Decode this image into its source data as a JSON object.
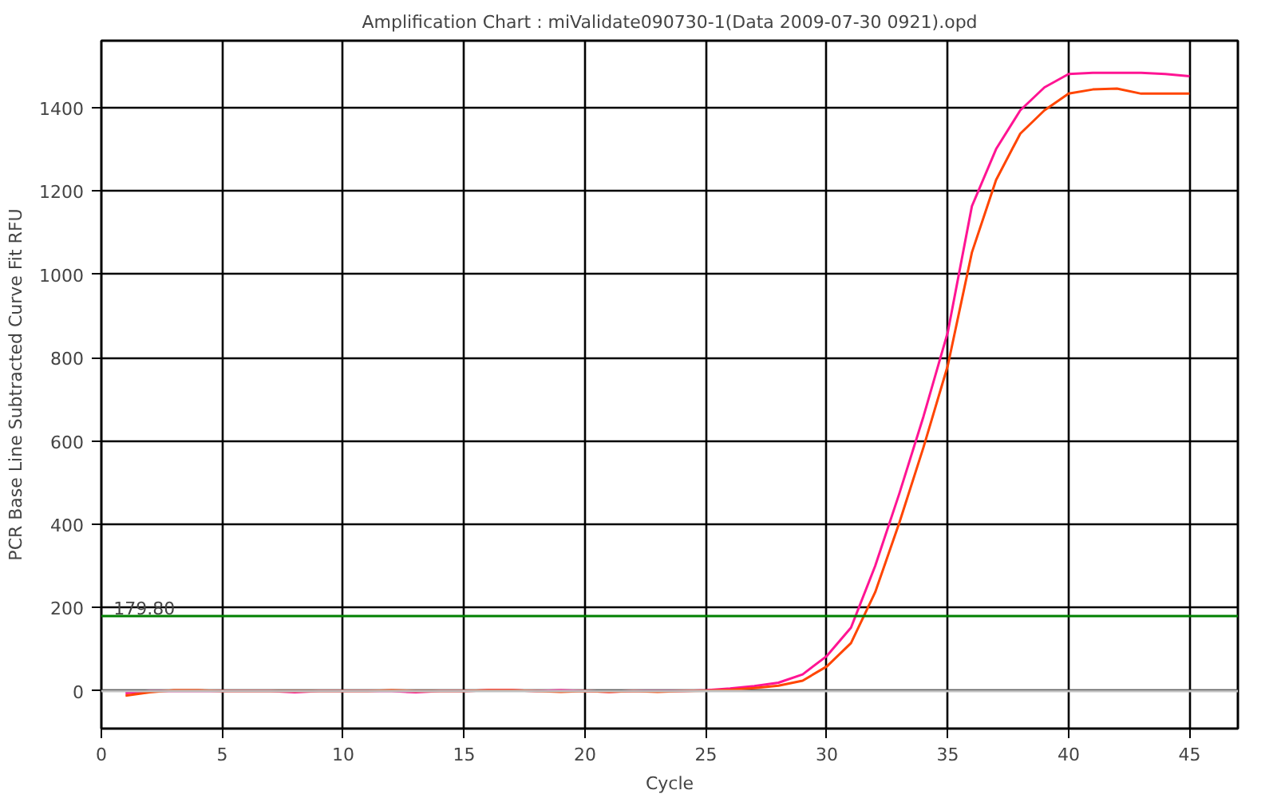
{
  "chart_data": {
    "type": "line",
    "title": "Amplification Chart : miValidate090730-1(Data 2009-07-30 0921).opd",
    "xlabel": "Cycle",
    "ylabel": "PCR Base Line Subtracted Curve Fit RFU",
    "x": [
      1,
      2,
      3,
      4,
      5,
      6,
      7,
      8,
      9,
      10,
      11,
      12,
      13,
      14,
      15,
      16,
      17,
      18,
      19,
      20,
      21,
      22,
      23,
      24,
      25,
      26,
      27,
      28,
      29,
      30,
      31,
      32,
      33,
      34,
      35,
      36,
      37,
      38,
      39,
      40,
      41,
      42,
      43,
      44,
      45
    ],
    "series": [
      {
        "color": "#ff1493",
        "values": [
          -5,
          0,
          0,
          0,
          0,
          0,
          0,
          -3,
          0,
          0,
          0,
          0,
          -3,
          0,
          0,
          2,
          2,
          0,
          2,
          0,
          -2,
          0,
          0,
          0,
          2,
          6,
          12,
          20,
          40,
          84,
          152,
          300,
          474,
          659,
          860,
          1163,
          1300,
          1393,
          1448,
          1480,
          1483,
          1483,
          1483,
          1480,
          1475
        ]
      },
      {
        "color": "#ff4500",
        "values": [
          -11,
          -3,
          2,
          2,
          0,
          0,
          0,
          0,
          0,
          0,
          0,
          2,
          0,
          0,
          0,
          2,
          2,
          0,
          -2,
          0,
          -2,
          0,
          -2,
          0,
          1,
          3,
          7,
          13,
          25,
          59,
          115,
          237,
          404,
          585,
          780,
          1052,
          1226,
          1337,
          1393,
          1433,
          1443,
          1445,
          1433,
          1433,
          1433
        ]
      }
    ],
    "xlim": [
      0,
      47
    ],
    "ylim": [
      -90,
      1560
    ],
    "xticks": [
      0,
      5,
      10,
      15,
      20,
      25,
      30,
      35,
      40,
      45
    ],
    "yticks": [
      0,
      200,
      400,
      600,
      800,
      1000,
      1200,
      1400
    ],
    "ref_lines": [
      {
        "axis": "y",
        "value": 179.8,
        "label": "179.80",
        "color": "#008000"
      },
      {
        "axis": "y",
        "value": 0,
        "color": "#c0c0c0"
      }
    ],
    "grid": true,
    "line_style": "solid",
    "marker": "none"
  }
}
